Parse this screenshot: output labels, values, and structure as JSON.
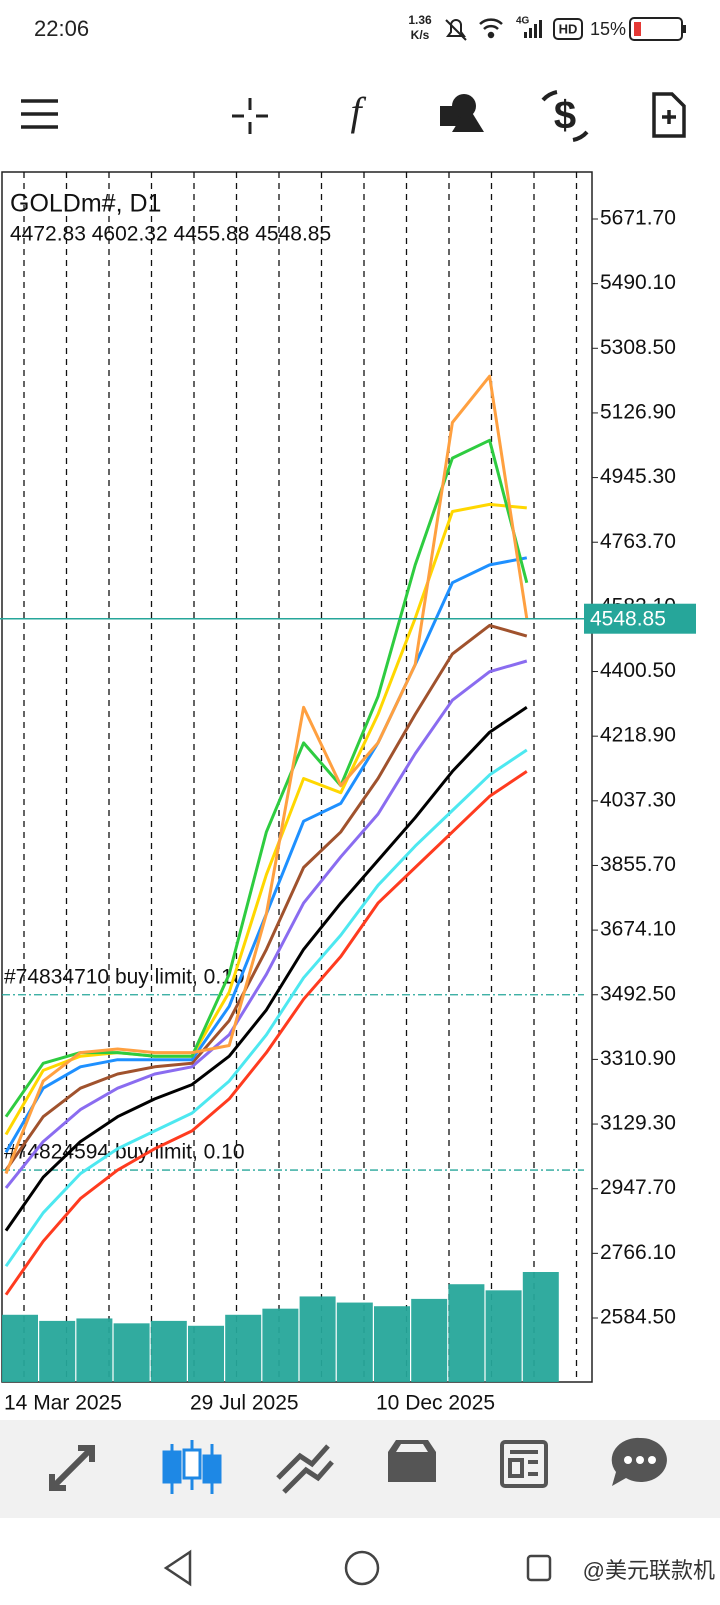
{
  "status_bar": {
    "time": "22:06",
    "net_speed": "1.36",
    "net_unit": "K/s",
    "network": "4G",
    "hd": "HD",
    "battery": "15%"
  },
  "chart_header": {
    "symbol": "GOLDm#, D1",
    "ohlc": "4472.83 4602.32 4455.88 4548.85"
  },
  "chart_data": {
    "type": "line",
    "categories": [
      "14 Mar 2025",
      null,
      null,
      null,
      null,
      "29 Jul 2025",
      null,
      null,
      null,
      null,
      "10 Dec 2025",
      null,
      null,
      null,
      null
    ],
    "ylim": [
      2404.7,
      5803.7
    ],
    "yticks": [
      {
        "value": 5671.7,
        "label": "5671.70"
      },
      {
        "value": 5490.1,
        "label": "5490.10"
      },
      {
        "value": 5308.5,
        "label": "5308.50"
      },
      {
        "value": 5126.9,
        "label": "5126.90"
      },
      {
        "value": 4945.3,
        "label": "4945.30"
      },
      {
        "value": 4763.7,
        "label": "4763.70"
      },
      {
        "value": 4582.1,
        "label": "4582.10"
      },
      {
        "value": 4400.5,
        "label": "4400.50"
      },
      {
        "value": 4218.9,
        "label": "4218.90"
      },
      {
        "value": 4037.3,
        "label": "4037.30"
      },
      {
        "value": 3855.7,
        "label": "3855.70"
      },
      {
        "value": 3674.1,
        "label": "3674.10"
      },
      {
        "value": 3492.5,
        "label": "3492.50"
      },
      {
        "value": 3310.9,
        "label": "3310.90"
      },
      {
        "value": 3129.3,
        "label": "3129.30"
      },
      {
        "value": 2947.7,
        "label": "2947.70"
      },
      {
        "value": 2766.1,
        "label": "2766.10"
      },
      {
        "value": 2584.5,
        "label": "2584.50"
      }
    ],
    "grid": true,
    "series": [
      {
        "color": "#ff3b1f",
        "values": [
          2650,
          2800,
          2920,
          3000,
          3060,
          3110,
          3200,
          3330,
          3480,
          3600,
          3750,
          3850,
          3950,
          4050,
          4120
        ]
      },
      {
        "color": "#4de8f0",
        "values": [
          2730,
          2880,
          2990,
          3060,
          3110,
          3160,
          3250,
          3380,
          3540,
          3660,
          3800,
          3910,
          4010,
          4110,
          4180
        ]
      },
      {
        "color": "#000000",
        "values": [
          2830,
          2980,
          3080,
          3150,
          3200,
          3240,
          3320,
          3450,
          3620,
          3750,
          3870,
          3990,
          4120,
          4230,
          4300
        ]
      },
      {
        "color": "#8a6cf0",
        "values": [
          2950,
          3080,
          3170,
          3230,
          3270,
          3290,
          3380,
          3550,
          3750,
          3880,
          4000,
          4170,
          4320,
          4400,
          4430
        ]
      },
      {
        "color": "#a0522d",
        "values": [
          3000,
          3150,
          3230,
          3270,
          3290,
          3300,
          3420,
          3620,
          3850,
          3950,
          4100,
          4280,
          4450,
          4530,
          4500
        ]
      },
      {
        "color": "#1e90ff",
        "values": [
          3050,
          3230,
          3290,
          3310,
          3310,
          3310,
          3460,
          3720,
          3980,
          4030,
          4200,
          4420,
          4650,
          4700,
          4720
        ]
      },
      {
        "color": "#ffd700",
        "values": [
          3100,
          3280,
          3320,
          3330,
          3320,
          3320,
          3500,
          3830,
          4100,
          4060,
          4280,
          4550,
          4850,
          4870,
          4860
        ]
      },
      {
        "color": "#2ecc40",
        "values": [
          3150,
          3300,
          3330,
          3330,
          3320,
          3320,
          3550,
          3950,
          4200,
          4080,
          4330,
          4700,
          5000,
          5050,
          4650
        ]
      },
      {
        "color": "#ffa040",
        "values": [
          2990,
          3250,
          3330,
          3340,
          3330,
          3330,
          3350,
          3720,
          4300,
          4080,
          4200,
          4420,
          5100,
          5230,
          4548.85
        ]
      }
    ],
    "volume_color": "#26a69a",
    "volume": [
      55,
      50,
      52,
      48,
      50,
      46,
      55,
      60,
      70,
      65,
      62,
      68,
      80,
      75,
      90
    ],
    "current_price": 4548.85,
    "price_line_color": "#26a69a",
    "orders": [
      {
        "label": "#74834710 buy limit, 0.10",
        "price": 3492.5
      },
      {
        "label": "#74824594 buy limit, 0.10",
        "price": 3000
      }
    ]
  },
  "watermark": "@美元联款机"
}
